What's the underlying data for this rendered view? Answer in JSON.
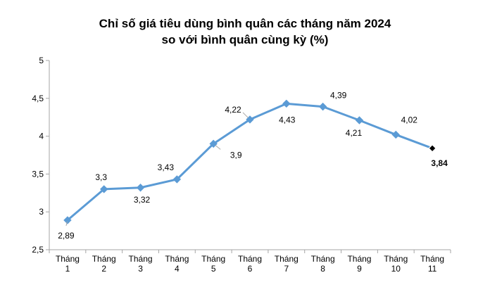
{
  "title_lines": [
    "Chỉ số giá tiêu dùng bình quân các tháng năm 2024",
    "so với bình quân cùng kỳ (%)"
  ],
  "colors": {
    "line": "#5B9BD5",
    "marker": "#5B9BD5",
    "last_marker": "#000000",
    "axis": "#A6A6A6",
    "text": "#000000",
    "callout": "#A6A6A6"
  },
  "chart_data": {
    "type": "line",
    "categories": [
      [
        "Tháng",
        "1"
      ],
      [
        "Tháng",
        "2"
      ],
      [
        "Tháng",
        "3"
      ],
      [
        "Tháng",
        "4"
      ],
      [
        "Tháng",
        "5"
      ],
      [
        "Tháng",
        "6"
      ],
      [
        "Tháng",
        "7"
      ],
      [
        "Tháng",
        "8"
      ],
      [
        "Tháng",
        "9"
      ],
      [
        "Tháng",
        "10"
      ],
      [
        "Tháng",
        "11"
      ]
    ],
    "series": [
      {
        "values": [
          2.89,
          3.3,
          3.32,
          3.43,
          3.9,
          4.22,
          4.43,
          4.39,
          4.21,
          4.02,
          3.84
        ],
        "data_labels": [
          "2,89",
          "3,3",
          "3,32",
          "3,43",
          "3,9",
          "4,22",
          "4,43",
          "4,39",
          "4,21",
          "4,02",
          "3,84"
        ]
      }
    ],
    "y_ticks": [
      2.5,
      3,
      3.5,
      4,
      4.5,
      5
    ],
    "y_tick_labels": [
      "2,5",
      "3",
      "3,5",
      "4",
      "4,5",
      "5"
    ],
    "ylim": [
      2.5,
      5
    ],
    "xlabel": "",
    "ylabel": "",
    "grid": false,
    "legend": "none",
    "highlight_last_point": true
  }
}
